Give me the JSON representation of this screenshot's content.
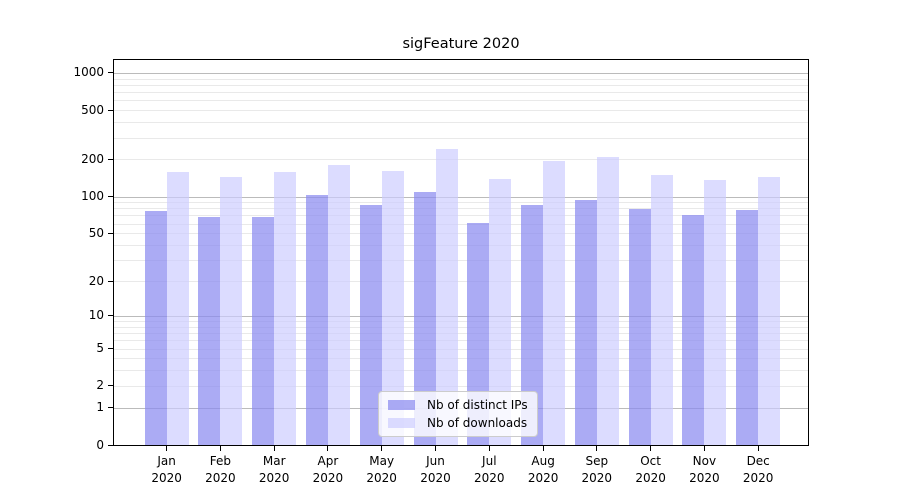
{
  "chart_data": {
    "type": "bar",
    "title": "sigFeature 2020",
    "x_tick_year": "2020",
    "categories": [
      "Jan",
      "Feb",
      "Mar",
      "Apr",
      "May",
      "Jun",
      "Jul",
      "Aug",
      "Sep",
      "Oct",
      "Nov",
      "Dec"
    ],
    "series": [
      {
        "name": "Nb of distinct IPs",
        "color": "#8a8af0",
        "alpha": 0.72,
        "values": [
          76,
          68,
          68,
          103,
          86,
          108,
          61,
          86,
          94,
          79,
          71,
          78
        ]
      },
      {
        "name": "Nb of downloads",
        "color": "#ccccff",
        "alpha": 0.68,
        "values": [
          159,
          145,
          157,
          179,
          161,
          244,
          138,
          195,
          208,
          150,
          135,
          145
        ]
      }
    ],
    "yscale": "log1p",
    "yticks": [
      0,
      1,
      2,
      5,
      10,
      20,
      50,
      100,
      200,
      500,
      1000
    ],
    "ylim": [
      0,
      1272
    ],
    "grid": true,
    "legend_position": "lower-center",
    "colors": {
      "major_grid": "#bbbbbb",
      "minor_grid": "#e9e9e9",
      "spine": "#000000",
      "text": "#000000",
      "legend_border": "#cccccc",
      "legend_background": "#ffffff"
    }
  }
}
